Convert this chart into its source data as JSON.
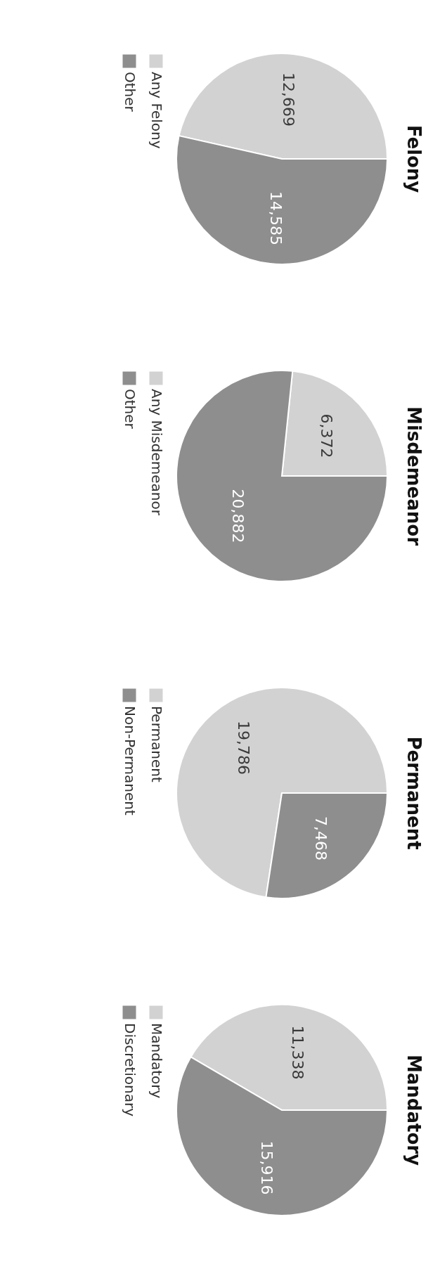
{
  "chart_data": [
    {
      "type": "pie",
      "title": "Felony",
      "categories": [
        "Any Felony",
        "Other"
      ],
      "values": [
        12669,
        14585
      ],
      "value_labels": [
        "12,669",
        "14,585"
      ],
      "colors": [
        "#d2d2d2",
        "#8e8e8e"
      ],
      "legend": "top left"
    },
    {
      "type": "pie",
      "title": "Misdemeanor",
      "categories": [
        "Any Misdemeanor",
        "Other"
      ],
      "values": [
        6372,
        20882
      ],
      "value_labels": [
        "6,372",
        "20,882"
      ],
      "colors": [
        "#d2d2d2",
        "#8e8e8e"
      ],
      "legend": "top left"
    },
    {
      "type": "pie",
      "title": "Permanent",
      "categories": [
        "Permanent",
        "Non-Permanent"
      ],
      "values": [
        19786,
        7468
      ],
      "value_labels": [
        "19,786",
        "7,468"
      ],
      "colors": [
        "#d2d2d2",
        "#8e8e8e"
      ],
      "legend": "top left"
    },
    {
      "type": "pie",
      "title": "Mandatory",
      "categories": [
        "Mandatory",
        "Discretionary"
      ],
      "values": [
        11338,
        15916
      ],
      "value_labels": [
        "11,338",
        "15,916"
      ],
      "colors": [
        "#d2d2d2",
        "#8e8e8e"
      ],
      "legend": "top left"
    }
  ]
}
